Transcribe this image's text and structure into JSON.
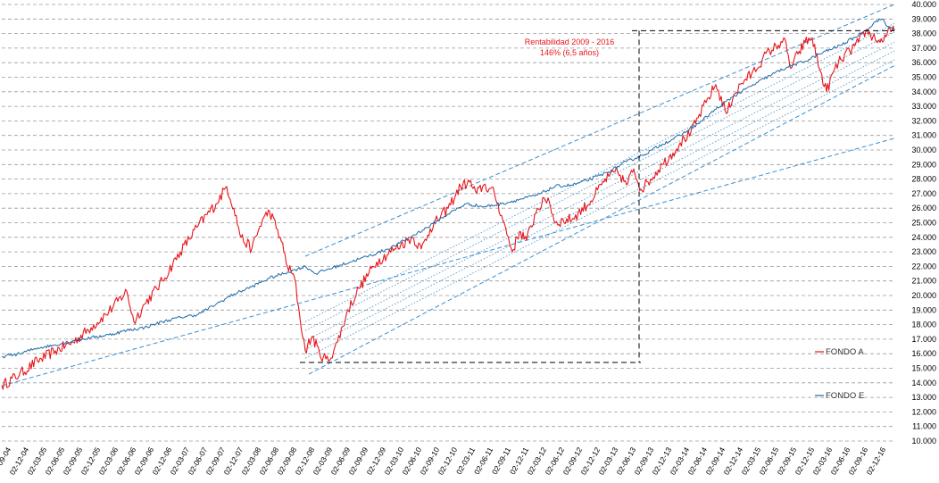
{
  "chart_data": {
    "type": "line",
    "title": "",
    "xlabel": "",
    "ylabel": "",
    "ylim": [
      10000,
      40000
    ],
    "y_tick_step": 1000,
    "y_ticks": [
      "10.000",
      "11.000",
      "12.000",
      "13.000",
      "14.000",
      "15.000",
      "16.000",
      "17.000",
      "18.000",
      "19.000",
      "20.000",
      "21.000",
      "22.000",
      "23.000",
      "24.000",
      "25.000",
      "26.000",
      "27.000",
      "28.000",
      "29.000",
      "30.000",
      "31.000",
      "32.000",
      "33.000",
      "34.000",
      "35.000",
      "36.000",
      "37.000",
      "38.000",
      "39.000",
      "40.000"
    ],
    "grid": "horizontal dashed",
    "x_ticks": [
      "02-09-04",
      "02-12-04",
      "02-03-05",
      "02-06-05",
      "02-09-05",
      "02-12-05",
      "02-03-06",
      "02-06-06",
      "02-09-06",
      "02-12-06",
      "02-03-07",
      "02-06-07",
      "02-09-07",
      "02-12-07",
      "02-03-08",
      "02-06-08",
      "02-09-08",
      "02-12-08",
      "02-03-09",
      "02-06-09",
      "02-09-09",
      "02-12-09",
      "02-03-10",
      "02-06-10",
      "02-09-10",
      "02-12-10",
      "02-03-11",
      "02-06-11",
      "02-09-11",
      "02-12-11",
      "02-03-12",
      "02-06-12",
      "02-09-12",
      "02-12-12",
      "02-03-13",
      "02-06-13",
      "02-09-13",
      "02-12-13",
      "02-03-14",
      "02-06-14",
      "02-09-14",
      "02-12-14",
      "02-03-15",
      "02-06-15",
      "02-09-15",
      "02-12-15",
      "02-03-16",
      "02-06-16",
      "02-09-16",
      "02-12-16"
    ],
    "series": [
      {
        "name": "FONDO A",
        "color": "#e8141a",
        "points": [
          [
            0,
            13800
          ],
          [
            1,
            14600
          ],
          [
            2,
            15500
          ],
          [
            3,
            16200
          ],
          [
            4,
            16800
          ],
          [
            5,
            17800
          ],
          [
            6,
            18900
          ],
          [
            7,
            20300
          ],
          [
            7.4,
            18200
          ],
          [
            8,
            19400
          ],
          [
            9,
            21000
          ],
          [
            10,
            23000
          ],
          [
            11,
            24800
          ],
          [
            12,
            26300
          ],
          [
            12.6,
            27500
          ],
          [
            13,
            26000
          ],
          [
            13.4,
            24000
          ],
          [
            14,
            23200
          ],
          [
            14.6,
            25200
          ],
          [
            15,
            25800
          ],
          [
            15.6,
            24000
          ],
          [
            16,
            22000
          ],
          [
            16.4,
            21200
          ],
          [
            16.7,
            18500
          ],
          [
            17,
            16200
          ],
          [
            17.4,
            17200
          ],
          [
            17.8,
            16000
          ],
          [
            18.3,
            15500
          ],
          [
            18.8,
            16800
          ],
          [
            19.4,
            19000
          ],
          [
            20,
            20500
          ],
          [
            21,
            22300
          ],
          [
            22,
            23200
          ],
          [
            23,
            24000
          ],
          [
            23.5,
            23200
          ],
          [
            24,
            24600
          ],
          [
            25,
            26000
          ],
          [
            25.7,
            27500
          ],
          [
            26.2,
            27800
          ],
          [
            26.6,
            27000
          ],
          [
            27,
            27600
          ],
          [
            27.6,
            27000
          ],
          [
            28,
            25500
          ],
          [
            28.6,
            23000
          ],
          [
            29,
            24400
          ],
          [
            29.4,
            23800
          ],
          [
            30,
            26000
          ],
          [
            30.6,
            26700
          ],
          [
            31,
            25000
          ],
          [
            32,
            25300
          ],
          [
            33,
            26500
          ],
          [
            33.6,
            27600
          ],
          [
            34,
            28200
          ],
          [
            34.5,
            28500
          ],
          [
            35,
            27600
          ],
          [
            35.4,
            28700
          ],
          [
            35.8,
            27300
          ],
          [
            36.2,
            27800
          ],
          [
            37,
            29000
          ],
          [
            37.6,
            29800
          ],
          [
            38,
            30500
          ],
          [
            38.6,
            31200
          ],
          [
            39,
            32200
          ],
          [
            39.6,
            33600
          ],
          [
            40,
            34500
          ],
          [
            40.6,
            32500
          ],
          [
            41,
            33800
          ],
          [
            41.6,
            34800
          ],
          [
            42,
            35200
          ],
          [
            42.6,
            36200
          ],
          [
            43,
            36800
          ],
          [
            43.5,
            37200
          ],
          [
            43.8,
            37700
          ],
          [
            44.2,
            35600
          ],
          [
            44.6,
            36600
          ],
          [
            45,
            37400
          ],
          [
            45.4,
            37700
          ],
          [
            45.8,
            35600
          ],
          [
            46.2,
            34000
          ],
          [
            46.6,
            35400
          ],
          [
            47,
            36200
          ],
          [
            47.5,
            36800
          ],
          [
            48,
            37400
          ],
          [
            48.4,
            38200
          ],
          [
            48.8,
            37800
          ],
          [
            49.2,
            37400
          ],
          [
            49.6,
            38000
          ],
          [
            50,
            38200
          ]
        ]
      },
      {
        "name": "FONDO E",
        "color": "#1f6aa5",
        "points": [
          [
            0,
            15800
          ],
          [
            1,
            16000
          ],
          [
            2,
            16400
          ],
          [
            3,
            16600
          ],
          [
            4,
            16900
          ],
          [
            5,
            17100
          ],
          [
            6,
            17300
          ],
          [
            7,
            17600
          ],
          [
            8,
            17800
          ],
          [
            9,
            18200
          ],
          [
            10,
            18500
          ],
          [
            11,
            18700
          ],
          [
            12,
            19400
          ],
          [
            13,
            20100
          ],
          [
            14,
            20600
          ],
          [
            15,
            21200
          ],
          [
            16,
            21600
          ],
          [
            17,
            22000
          ],
          [
            17.6,
            21500
          ],
          [
            18,
            21700
          ],
          [
            19,
            22100
          ],
          [
            20,
            22500
          ],
          [
            21,
            22900
          ],
          [
            22,
            23400
          ],
          [
            23,
            24100
          ],
          [
            24,
            24800
          ],
          [
            25,
            25600
          ],
          [
            26,
            26300
          ],
          [
            27,
            26100
          ],
          [
            28,
            26300
          ],
          [
            29,
            26600
          ],
          [
            30,
            26900
          ],
          [
            31,
            27500
          ],
          [
            32,
            27600
          ],
          [
            33,
            28000
          ],
          [
            34,
            28500
          ],
          [
            35,
            29200
          ],
          [
            36,
            29700
          ],
          [
            37,
            30400
          ],
          [
            38,
            31000
          ],
          [
            39,
            31800
          ],
          [
            40,
            32800
          ],
          [
            41,
            33700
          ],
          [
            42,
            34400
          ],
          [
            43,
            35100
          ],
          [
            44,
            35700
          ],
          [
            45,
            36100
          ],
          [
            46,
            36700
          ],
          [
            47,
            37200
          ],
          [
            48,
            37900
          ],
          [
            48.6,
            38400
          ],
          [
            49,
            38900
          ],
          [
            49.3,
            39000
          ],
          [
            49.6,
            38500
          ],
          [
            50,
            38300
          ]
        ]
      }
    ],
    "channel_lines": [
      {
        "style": "dashed",
        "from": [
          0,
          13800
        ],
        "to": [
          50,
          30800
        ]
      },
      {
        "style": "dashed",
        "from": [
          17,
          22700
        ],
        "to": [
          50,
          40000
        ]
      },
      {
        "style": "dashed",
        "from": [
          17.2,
          14600
        ],
        "to": [
          50,
          35800
        ]
      },
      {
        "style": "dotted",
        "from": [
          17,
          18200
        ],
        "to": [
          50,
          38700
        ]
      },
      {
        "style": "dotted",
        "from": [
          17,
          17600
        ],
        "to": [
          50,
          38100
        ]
      },
      {
        "style": "dotted",
        "from": [
          17,
          16900
        ],
        "to": [
          50,
          37400
        ]
      },
      {
        "style": "dotted",
        "from": [
          17,
          16300
        ],
        "to": [
          50,
          36800
        ]
      },
      {
        "style": "dotted",
        "from": [
          17,
          15700
        ],
        "to": [
          50,
          36200
        ]
      }
    ],
    "annotation": {
      "line1": "Rentabilidad  2009 - 2016",
      "line2": "146%  (6,5 años)",
      "low_value": 15400,
      "high_value": 38200,
      "x_low_start": 16.7,
      "x_low_end": 35.8,
      "x_high_start": 35.3,
      "x_high_end": 50
    },
    "legend_position": "right-middle"
  }
}
